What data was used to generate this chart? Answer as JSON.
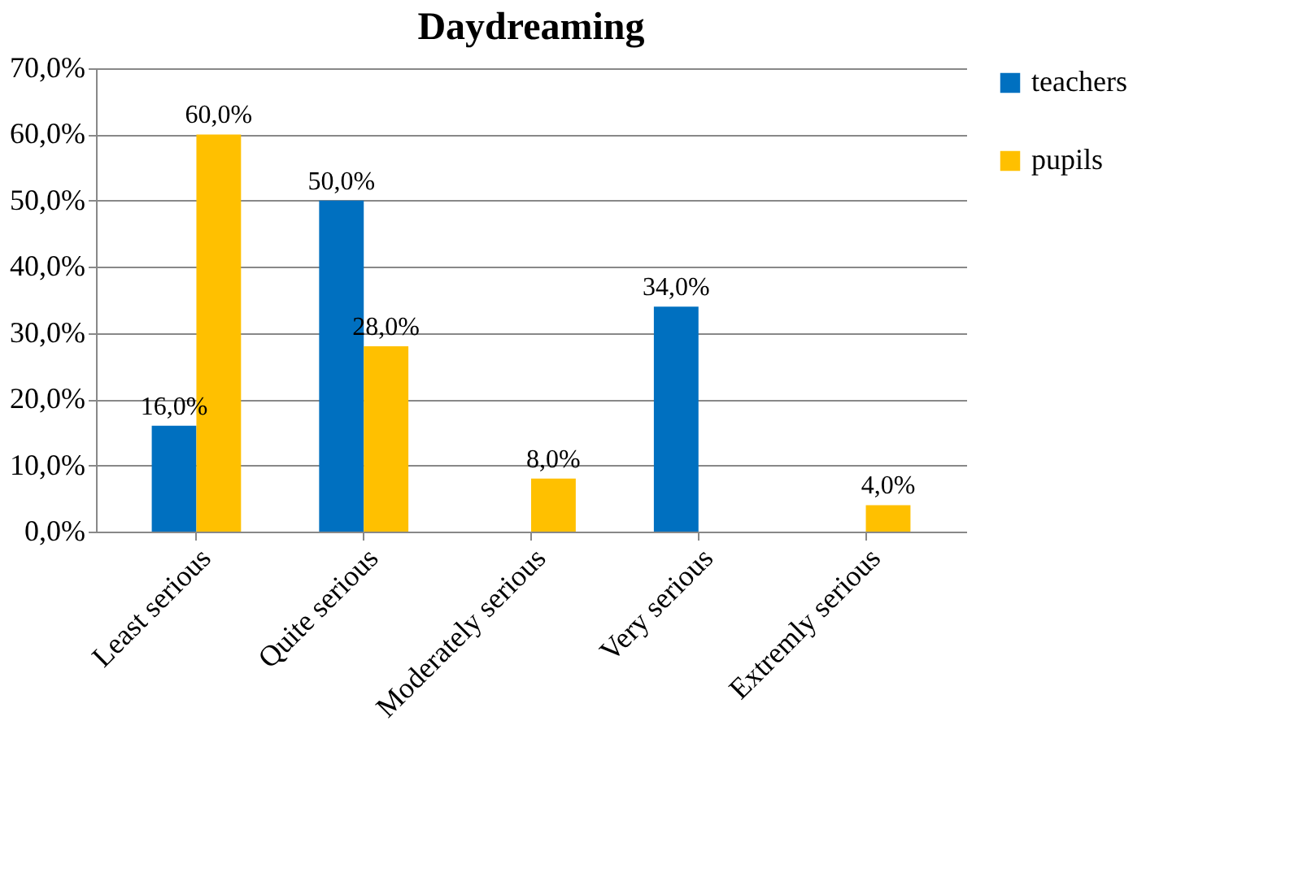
{
  "chart_data": {
    "type": "bar",
    "title": "Daydreaming",
    "categories": [
      "Least serious",
      "Quite serious",
      "Moderately serious",
      "Very serious",
      "Extremly serious"
    ],
    "series": [
      {
        "name": "teachers",
        "color": "#0070c0",
        "values": [
          16,
          50,
          null,
          34,
          null
        ],
        "value_labels": [
          "16,0%",
          "50,0%",
          null,
          "34,0%",
          null
        ]
      },
      {
        "name": "pupils",
        "color": "#ffc000",
        "values": [
          60,
          28,
          8,
          null,
          4
        ],
        "value_labels": [
          "60,0%",
          "28,0%",
          "8,0%",
          null,
          "4,0%"
        ]
      }
    ],
    "ylim": [
      0,
      70
    ],
    "yticks": [
      {
        "value": 0,
        "label": "0,0%"
      },
      {
        "value": 10,
        "label": "10,0%"
      },
      {
        "value": 20,
        "label": "20,0%"
      },
      {
        "value": 30,
        "label": "30,0%"
      },
      {
        "value": 40,
        "label": "40,0%"
      },
      {
        "value": 50,
        "label": "50,0%"
      },
      {
        "value": 60,
        "label": "60,0%"
      },
      {
        "value": 70,
        "label": "70,0%"
      }
    ],
    "grid": "y",
    "legend": "right"
  }
}
